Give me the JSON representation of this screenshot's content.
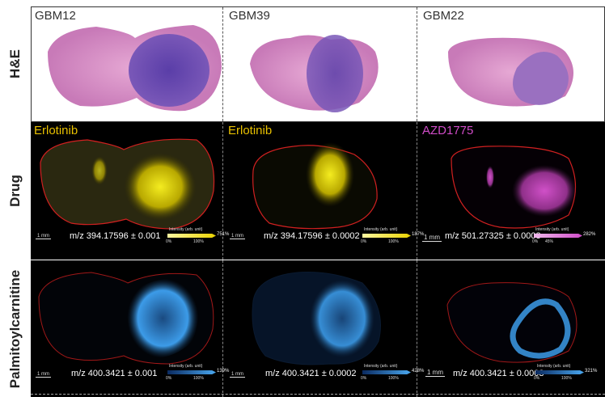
{
  "row_labels": {
    "he": "H&E",
    "drug": "Drug",
    "palm": "Palmitoylcarnitine"
  },
  "columns": [
    {
      "sample": "GBM12",
      "drug": "Erlotinib",
      "drug_mz": "m/z 394.17596 ± 0.001",
      "drug_max": "751%",
      "drug_ticks": [
        "0%",
        "100%"
      ],
      "palm_mz": "m/z 400.3421 ± 0.001",
      "palm_max": "139%",
      "palm_ticks": [
        "0%",
        "100%"
      ]
    },
    {
      "sample": "GBM39",
      "drug": "Erlotinib",
      "drug_mz": "m/z 394.17596 ± 0.0002",
      "drug_max": "187%",
      "drug_ticks": [
        "0%",
        "100%"
      ],
      "palm_mz": "m/z 400.3421 ± 0.0002",
      "palm_max": "428%",
      "palm_ticks": [
        "0%",
        "100%"
      ]
    },
    {
      "sample": "GBM22",
      "drug": "AZD1775",
      "drug_mz": "m/z 501.27325 ± 0.0003",
      "drug_max": "282%",
      "drug_ticks": [
        "0%",
        "45%"
      ],
      "palm_mz": "m/z 400.3421 ± 0.0003",
      "palm_max": "321%",
      "palm_ticks": [
        "0%",
        "100%"
      ]
    }
  ],
  "scale_bar": "1 mm",
  "legend_title": "Intensity (arb. unit)",
  "colors": {
    "erlotinib": "#e8d200",
    "azd": "#d04cc8",
    "palm": "#3c9be8",
    "outline": "#d02020"
  }
}
